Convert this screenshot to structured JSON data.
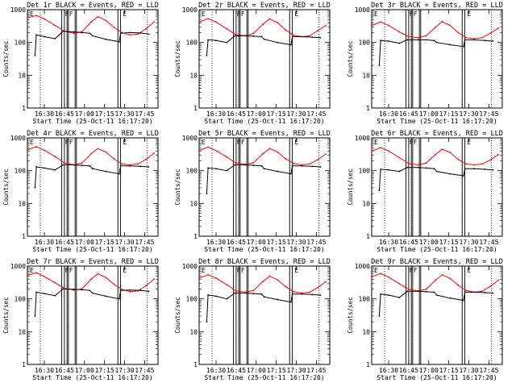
{
  "chart_data": [
    {
      "type": "line",
      "title": "Det 1r BLACK = Events, RED = LLD",
      "xlabel": "Start Time (25-Oct-11 16:17:20)",
      "ylabel": "Counts/sec",
      "yscale": "log",
      "ylim": [
        1,
        1000
      ],
      "xlim": [
        "16:17:20",
        "17:55:00"
      ],
      "xticks": [
        "16:30",
        "16:45",
        "17:00",
        "17:15",
        "17:30",
        "17:45"
      ],
      "yticks": [
        "1",
        "10",
        "100",
        "1000"
      ],
      "flag_labels": [
        "E",
        "F",
        "F",
        "E"
      ],
      "series": [
        {
          "color": "#ff0000",
          "x": [
            "16:17:20",
            "16:24",
            "16:30",
            "16:38",
            "16:45",
            "16:52",
            "16:58",
            "17:05",
            "17:10",
            "17:16",
            "17:22",
            "17:28",
            "17:34",
            "17:40",
            "17:46",
            "17:52"
          ],
          "values": [
            560,
            660,
            520,
            330,
            220,
            190,
            210,
            420,
            610,
            470,
            290,
            200,
            170,
            180,
            260,
            420
          ]
        },
        {
          "color": "#000000",
          "x": [
            "16:23",
            "16:24",
            "16:30",
            "16:38",
            "16:44",
            "16:52",
            "16:58",
            "17:04",
            "17:06",
            "17:16",
            "17:26",
            "17:27",
            "17:34",
            "17:42",
            "17:48"
          ],
          "values": [
            40,
            170,
            150,
            130,
            220,
            210,
            200,
            190,
            160,
            125,
            105,
            190,
            200,
            195,
            180
          ]
        }
      ]
    },
    {
      "type": "line",
      "title": "Det 2r BLACK = Events, RED = LLD",
      "xlabel": "Start Time (25-Oct-11 16:17:20)",
      "ylabel": "Counts/sec",
      "yscale": "log",
      "ylim": [
        1,
        1000
      ],
      "xlim": [
        "16:17:20",
        "17:55:00"
      ],
      "xticks": [
        "16:30",
        "16:45",
        "17:00",
        "17:15",
        "17:30",
        "17:45"
      ],
      "yticks": [
        "1",
        "10",
        "100",
        "1000"
      ],
      "flag_labels": [
        "E",
        "F",
        "F",
        "E"
      ],
      "series": [
        {
          "color": "#ff0000",
          "x": [
            "16:17:20",
            "16:24",
            "16:30",
            "16:38",
            "16:45",
            "16:52",
            "16:58",
            "17:05",
            "17:10",
            "17:16",
            "17:22",
            "17:28",
            "17:34",
            "17:40",
            "17:46",
            "17:52"
          ],
          "values": [
            420,
            530,
            420,
            260,
            170,
            160,
            190,
            360,
            520,
            400,
            240,
            165,
            150,
            160,
            230,
            330
          ]
        },
        {
          "color": "#000000",
          "x": [
            "16:23",
            "16:24",
            "16:30",
            "16:38",
            "16:44",
            "16:52",
            "16:58",
            "17:04",
            "17:06",
            "17:16",
            "17:26",
            "17:27",
            "17:34",
            "17:42",
            "17:48"
          ],
          "values": [
            40,
            120,
            115,
            100,
            160,
            160,
            155,
            150,
            125,
            100,
            85,
            150,
            150,
            145,
            140
          ]
        }
      ]
    },
    {
      "type": "line",
      "title": "Det 3r BLACK = Events, RED = LLD",
      "xlabel": "Start Time (25-Oct-11 16:17:20)",
      "ylabel": "Counts/sec",
      "yscale": "log",
      "ylim": [
        1,
        1000
      ],
      "xlim": [
        "16:17:20",
        "17:55:00"
      ],
      "xticks": [
        "16:30",
        "16:45",
        "17:00",
        "17:15",
        "17:30",
        "17:45"
      ],
      "yticks": [
        "1",
        "10",
        "100",
        "1000"
      ],
      "flag_labels": [
        "E",
        "F",
        "F",
        "E"
      ],
      "series": [
        {
          "color": "#ff0000",
          "x": [
            "16:17:20",
            "16:24",
            "16:30",
            "16:38",
            "16:45",
            "16:52",
            "16:58",
            "17:05",
            "17:10",
            "17:16",
            "17:22",
            "17:28",
            "17:34",
            "17:40",
            "17:46",
            "17:52"
          ],
          "values": [
            330,
            420,
            330,
            210,
            150,
            140,
            160,
            290,
            430,
            330,
            200,
            140,
            130,
            140,
            190,
            270
          ]
        },
        {
          "color": "#000000",
          "x": [
            "16:23",
            "16:24",
            "16:30",
            "16:38",
            "16:44",
            "16:52",
            "16:58",
            "17:04",
            "17:06",
            "17:16",
            "17:26",
            "17:27",
            "17:34",
            "17:42",
            "17:48"
          ],
          "values": [
            20,
            115,
            110,
            95,
            120,
            120,
            120,
            115,
            100,
            85,
            75,
            120,
            120,
            115,
            110
          ]
        }
      ]
    },
    {
      "type": "line",
      "title": "Det 4r BLACK = Events, RED = LLD",
      "xlabel": "Start Time (25-Oct-11 16:17:20)",
      "ylabel": "Counts/sec",
      "yscale": "log",
      "ylim": [
        1,
        1000
      ],
      "xlim": [
        "16:17:20",
        "17:55:00"
      ],
      "xticks": [
        "16:30",
        "16:45",
        "17:00",
        "17:15",
        "17:30",
        "17:45"
      ],
      "yticks": [
        "1",
        "10",
        "100",
        "1000"
      ],
      "flag_labels": [
        "E",
        "F",
        "F",
        "E"
      ],
      "series": [
        {
          "color": "#ff0000",
          "x": [
            "16:17:20",
            "16:24",
            "16:30",
            "16:38",
            "16:45",
            "16:52",
            "16:58",
            "17:05",
            "17:10",
            "17:16",
            "17:22",
            "17:28",
            "17:34",
            "17:40",
            "17:46",
            "17:52"
          ],
          "values": [
            430,
            540,
            420,
            270,
            170,
            150,
            170,
            330,
            470,
            370,
            230,
            160,
            150,
            160,
            220,
            340
          ]
        },
        {
          "color": "#000000",
          "x": [
            "16:23",
            "16:24",
            "16:30",
            "16:38",
            "16:44",
            "16:52",
            "16:58",
            "17:04",
            "17:06",
            "17:16",
            "17:26",
            "17:27",
            "17:34",
            "17:42",
            "17:48"
          ],
          "values": [
            30,
            130,
            120,
            105,
            150,
            150,
            145,
            140,
            115,
            95,
            80,
            140,
            140,
            135,
            130
          ]
        }
      ]
    },
    {
      "type": "line",
      "title": "Det 5r BLACK = Events, RED = LLD",
      "xlabel": "Start Time (25-Oct-11 16:17:20)",
      "ylabel": "Counts/sec",
      "yscale": "log",
      "ylim": [
        1,
        1000
      ],
      "xlim": [
        "16:17:20",
        "17:55:00"
      ],
      "xticks": [
        "16:30",
        "16:45",
        "17:00",
        "17:15",
        "17:30",
        "17:45"
      ],
      "yticks": [
        "1",
        "10",
        "100",
        "1000"
      ],
      "flag_labels": [
        "E",
        "F",
        "F",
        "E"
      ],
      "series": [
        {
          "color": "#ff0000",
          "x": [
            "16:17:20",
            "16:24",
            "16:30",
            "16:38",
            "16:45",
            "16:52",
            "16:58",
            "17:05",
            "17:10",
            "17:16",
            "17:22",
            "17:28",
            "17:34",
            "17:40",
            "17:46",
            "17:52"
          ],
          "values": [
            410,
            520,
            410,
            260,
            170,
            155,
            175,
            330,
            470,
            370,
            230,
            165,
            150,
            160,
            215,
            320
          ]
        },
        {
          "color": "#000000",
          "x": [
            "16:23",
            "16:24",
            "16:30",
            "16:38",
            "16:44",
            "16:52",
            "16:58",
            "17:04",
            "17:06",
            "17:16",
            "17:26",
            "17:27",
            "17:34",
            "17:42",
            "17:48"
          ],
          "values": [
            20,
            120,
            115,
            100,
            150,
            150,
            145,
            140,
            115,
            95,
            80,
            140,
            140,
            135,
            130
          ]
        }
      ]
    },
    {
      "type": "line",
      "title": "Det 6r BLACK = Events, RED = LLD",
      "xlabel": "Start Time (25-Oct-11 16:17:20)",
      "ylabel": "Counts/sec",
      "yscale": "log",
      "ylim": [
        1,
        1000
      ],
      "xlim": [
        "16:17:20",
        "17:55:00"
      ],
      "xticks": [
        "16:30",
        "16:45",
        "17:00",
        "17:15",
        "17:30",
        "17:45"
      ],
      "yticks": [
        "1",
        "10",
        "100",
        "1000"
      ],
      "flag_labels": [
        "E",
        "F",
        "F",
        "E"
      ],
      "series": [
        {
          "color": "#ff0000",
          "x": [
            "16:17:20",
            "16:24",
            "16:30",
            "16:38",
            "16:45",
            "16:52",
            "16:58",
            "17:05",
            "17:10",
            "17:16",
            "17:22",
            "17:28",
            "17:34",
            "17:40",
            "17:46",
            "17:52"
          ],
          "values": [
            400,
            500,
            400,
            250,
            165,
            150,
            170,
            310,
            450,
            360,
            220,
            160,
            150,
            160,
            210,
            310
          ]
        },
        {
          "color": "#000000",
          "x": [
            "16:23",
            "16:24",
            "16:30",
            "16:38",
            "16:44",
            "16:52",
            "16:58",
            "17:04",
            "17:06",
            "17:16",
            "17:26",
            "17:27",
            "17:34",
            "17:42",
            "17:48"
          ],
          "values": [
            25,
            110,
            105,
            95,
            125,
            125,
            120,
            115,
            95,
            80,
            70,
            115,
            115,
            110,
            105
          ]
        }
      ]
    },
    {
      "type": "line",
      "title": "Det 7r BLACK = Events, RED = LLD",
      "xlabel": "Start Time (25-Oct-11 16:17:20)",
      "ylabel": "Counts/sec",
      "yscale": "log",
      "ylim": [
        1,
        1000
      ],
      "xlim": [
        "16:17:20",
        "17:55:00"
      ],
      "xticks": [
        "16:30",
        "16:45",
        "17:00",
        "17:15",
        "17:30",
        "17:45"
      ],
      "yticks": [
        "1",
        "10",
        "100",
        "1000"
      ],
      "flag_labels": [
        "E",
        "F",
        "F",
        "E"
      ],
      "series": [
        {
          "color": "#ff0000",
          "x": [
            "16:17:20",
            "16:24",
            "16:30",
            "16:38",
            "16:45",
            "16:52",
            "16:58",
            "17:05",
            "17:10",
            "17:16",
            "17:22",
            "17:28",
            "17:34",
            "17:40",
            "17:46",
            "17:52"
          ],
          "values": [
            520,
            620,
            480,
            310,
            210,
            185,
            200,
            400,
            580,
            450,
            280,
            195,
            165,
            175,
            250,
            400
          ]
        },
        {
          "color": "#000000",
          "x": [
            "16:23",
            "16:24",
            "16:30",
            "16:38",
            "16:44",
            "16:52",
            "16:58",
            "17:04",
            "17:06",
            "17:16",
            "17:26",
            "17:27",
            "17:34",
            "17:42",
            "17:48"
          ],
          "values": [
            30,
            160,
            145,
            125,
            200,
            195,
            190,
            180,
            150,
            120,
            100,
            180,
            185,
            180,
            170
          ]
        }
      ]
    },
    {
      "type": "line",
      "title": "Det 8r BLACK = Events, RED = LLD",
      "xlabel": "Start Time (25-Oct-11 16:17:20)",
      "ylabel": "Counts/sec",
      "yscale": "log",
      "ylim": [
        1,
        1000
      ],
      "xlim": [
        "16:17:20",
        "17:55:00"
      ],
      "xticks": [
        "16:30",
        "16:45",
        "17:00",
        "17:15",
        "17:30",
        "17:45"
      ],
      "yticks": [
        "1",
        "10",
        "100",
        "1000"
      ],
      "flag_labels": [
        "E",
        "F",
        "F",
        "E"
      ],
      "series": [
        {
          "color": "#ff0000",
          "x": [
            "16:17:20",
            "16:24",
            "16:30",
            "16:38",
            "16:45",
            "16:52",
            "16:58",
            "17:05",
            "17:10",
            "17:16",
            "17:22",
            "17:28",
            "17:34",
            "17:40",
            "17:46",
            "17:52"
          ],
          "values": [
            430,
            540,
            430,
            270,
            175,
            160,
            180,
            340,
            490,
            380,
            235,
            165,
            150,
            160,
            220,
            330
          ]
        },
        {
          "color": "#000000",
          "x": [
            "16:23",
            "16:24",
            "16:30",
            "16:38",
            "16:44",
            "16:52",
            "16:58",
            "17:04",
            "17:06",
            "17:16",
            "17:26",
            "17:27",
            "17:34",
            "17:42",
            "17:48"
          ],
          "values": [
            20,
            130,
            120,
            100,
            150,
            150,
            145,
            140,
            115,
            95,
            80,
            140,
            140,
            135,
            130
          ]
        }
      ]
    },
    {
      "type": "line",
      "title": "Det 9r BLACK = Events, RED = LLD",
      "xlabel": "Start Time (25-Oct-11 16:17:20)",
      "ylabel": "Counts/sec",
      "yscale": "log",
      "ylim": [
        1,
        1000
      ],
      "xlim": [
        "16:17:20",
        "17:55:00"
      ],
      "xticks": [
        "16:30",
        "16:45",
        "17:00",
        "17:15",
        "17:30",
        "17:45"
      ],
      "yticks": [
        "1",
        "10",
        "100",
        "1000"
      ],
      "flag_labels": [
        "E",
        "F",
        "F",
        "E"
      ],
      "series": [
        {
          "color": "#ff0000",
          "x": [
            "16:17:20",
            "16:24",
            "16:30",
            "16:38",
            "16:45",
            "16:52",
            "16:58",
            "17:05",
            "17:10",
            "17:16",
            "17:22",
            "17:28",
            "17:34",
            "17:40",
            "17:46",
            "17:52"
          ],
          "values": [
            470,
            590,
            460,
            290,
            195,
            175,
            195,
            370,
            540,
            420,
            260,
            180,
            160,
            170,
            240,
            370
          ]
        },
        {
          "color": "#000000",
          "x": [
            "16:23",
            "16:24",
            "16:30",
            "16:38",
            "16:44",
            "16:52",
            "16:58",
            "17:04",
            "17:06",
            "17:16",
            "17:26",
            "17:27",
            "17:34",
            "17:42",
            "17:48"
          ],
          "values": [
            30,
            140,
            130,
            110,
            170,
            170,
            165,
            160,
            130,
            105,
            90,
            160,
            160,
            155,
            150
          ]
        }
      ]
    }
  ],
  "markers": {
    "dotted_times": [
      "16:27",
      "16:47",
      "17:25",
      "17:47"
    ],
    "solid_pairs": [
      [
        "16:43",
        "16:45"
      ],
      [
        "16:47",
        "16:48"
      ],
      [
        "16:53",
        "16:54"
      ],
      [
        "17:25",
        "17:27"
      ]
    ]
  }
}
